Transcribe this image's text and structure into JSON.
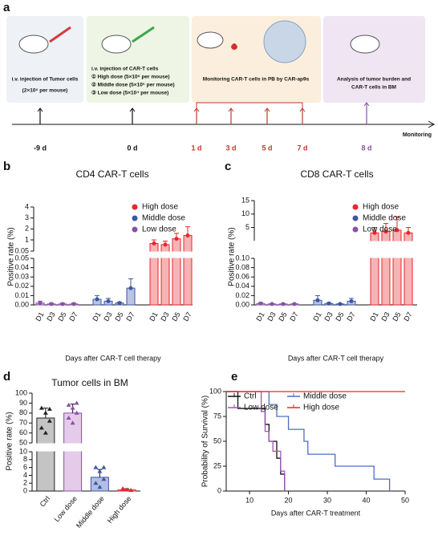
{
  "timeline": {
    "panel": "a",
    "boxes": [
      [
        "i.v. injection of Tumor cells",
        "(2×10⁶ per mouse)"
      ],
      [
        "i.v. injection of CAR-T cells",
        "① High dose (5×10⁶ per mouse)",
        "② Middle dose (5×10⁵ per mouse)",
        "③ Low dose (5×10⁴ per mouse)"
      ],
      [
        "Monitoring CAR-T cells in PB by CAR-ap9s"
      ],
      [
        "Analysis of tumor burden and",
        "CAR-T cells in BM"
      ]
    ],
    "points": [
      "-9 d",
      "0 d",
      "1 d",
      "3 d",
      "5 d",
      "7 d",
      "8 d"
    ],
    "end_label": "Monitoring"
  },
  "chart_data": [
    {
      "panel": "b",
      "type": "bar",
      "title": "CD4 CAR-T cells",
      "xlabel": "Days after CAR-T cell therapy",
      "ylabel": "Positive rate (%)",
      "categories": [
        "D1",
        "D3",
        "D5",
        "D7"
      ],
      "series": [
        {
          "name": "High dose",
          "color": "#e8262b",
          "values": [
            0.7,
            0.6,
            1.1,
            1.4
          ],
          "errors": [
            0.3,
            0.3,
            0.5,
            0.8
          ]
        },
        {
          "name": "Middle dose",
          "color": "#3d55a6",
          "values": [
            0.006,
            0.004,
            0.002,
            0.018
          ],
          "errors": [
            0.004,
            0.003,
            0.001,
            0.01
          ]
        },
        {
          "name": "Low dose",
          "color": "#8b4fa8",
          "values": [
            0.002,
            0.001,
            0.001,
            0.001
          ],
          "errors": [
            0.002,
            0.001,
            0.001,
            0.001
          ]
        }
      ],
      "y_segments": [
        {
          "ylim": [
            0,
            0.05
          ],
          "yticks": [
            {
              "value": 0,
              "label": "0.00"
            },
            0.01,
            0.02,
            0.03,
            0.04,
            0.05
          ]
        },
        {
          "ylim": [
            0.05,
            1
          ],
          "yticks": [
            0.05
          ]
        },
        {
          "ylim": [
            1,
            4
          ],
          "yticks": [
            1,
            2,
            3,
            4
          ]
        }
      ]
    },
    {
      "panel": "c",
      "type": "bar",
      "title": "CD8 CAR-T cells",
      "xlabel": "Days after CAR-T cell therapy",
      "ylabel": "Positive rate (%)",
      "categories": [
        "D1",
        "D3",
        "D5",
        "D7"
      ],
      "series": [
        {
          "name": "High dose",
          "color": "#e8262b",
          "values": [
            3,
            3.5,
            4,
            3
          ],
          "errors": [
            2,
            3,
            5,
            2
          ]
        },
        {
          "name": "Middle dose",
          "color": "#3d55a6",
          "values": [
            0.01,
            0.003,
            0.002,
            0.008
          ],
          "errors": [
            0.01,
            0.002,
            0.001,
            0.006
          ]
        },
        {
          "name": "Low dose",
          "color": "#8b4fa8",
          "values": [
            0.003,
            0.002,
            0.002,
            0.002
          ],
          "errors": [
            0.002,
            0.001,
            0.001,
            0.001
          ]
        }
      ],
      "y_segments": [
        {
          "ylim": [
            0,
            0.1
          ],
          "yticks": [
            {
              "value": 0,
              "label": "0.00"
            },
            0.02,
            0.04,
            0.06,
            0.08,
            {
              "value": 0.1,
              "label": "0.10"
            }
          ]
        },
        {
          "ylim": [
            0.1,
            15
          ],
          "yticks": [
            5,
            10,
            15
          ]
        }
      ]
    },
    {
      "panel": "d",
      "type": "dotbar",
      "title": "Tumor cells in BM",
      "ylabel": "Positive rate (%)",
      "categories": [
        "Ctrl",
        "Low dose",
        "Middle dose",
        "High dose"
      ],
      "values": [
        75,
        80,
        3.5,
        0.3
      ],
      "errors": [
        10,
        9,
        2,
        0.3
      ],
      "colors": [
        "#c4c4c4",
        "#e3cbe9",
        "#b4bee3",
        "#f4b6b6"
      ],
      "point_colors": [
        "#222222",
        "#8b4fa8",
        "#3d55a6",
        "#e8262b"
      ],
      "points": [
        [
          85,
          80,
          72,
          65,
          60,
          84
        ],
        [
          88,
          85,
          80,
          75,
          70,
          90
        ],
        [
          6,
          5,
          3,
          2,
          1,
          6
        ],
        [
          0.5,
          0.3,
          0.2,
          0.6
        ]
      ],
      "y_segments": [
        {
          "ylim": [
            0,
            10
          ],
          "yticks": [
            0,
            2,
            4,
            6,
            8,
            10
          ]
        },
        {
          "ylim": [
            50,
            100
          ],
          "yticks": [
            50,
            60,
            70,
            80,
            90,
            100
          ]
        }
      ]
    },
    {
      "panel": "e",
      "type": "line",
      "xlabel": "Days after CAR-T treatment",
      "ylabel": "Probability of Survival (%)",
      "xlim": [
        4,
        50
      ],
      "xticks": [
        10,
        20,
        30,
        40,
        50
      ],
      "ylim": [
        0,
        100
      ],
      "yticks": [
        0,
        25,
        50,
        75,
        100
      ],
      "step": true,
      "series": [
        {
          "name": "Ctrl",
          "color": "#111111",
          "x": [
            4,
            7,
            14,
            15,
            17,
            18,
            19
          ],
          "values": [
            100,
            83,
            67,
            50,
            33,
            17,
            0
          ]
        },
        {
          "name": "Middle dose",
          "color": "#4a6fc0",
          "x": [
            4,
            15,
            17,
            20,
            24,
            25,
            32,
            42,
            46
          ],
          "values": [
            100,
            87,
            75,
            62,
            50,
            37,
            25,
            12,
            0
          ]
        },
        {
          "name": "Low dose",
          "color": "#9b59b6",
          "x": [
            4,
            13,
            14,
            15,
            16,
            18,
            19
          ],
          "values": [
            100,
            80,
            60,
            50,
            40,
            20,
            0
          ]
        },
        {
          "name": "High dose",
          "color": "#e8262b",
          "x": [
            4,
            50
          ],
          "values": [
            100,
            100
          ]
        }
      ]
    }
  ]
}
